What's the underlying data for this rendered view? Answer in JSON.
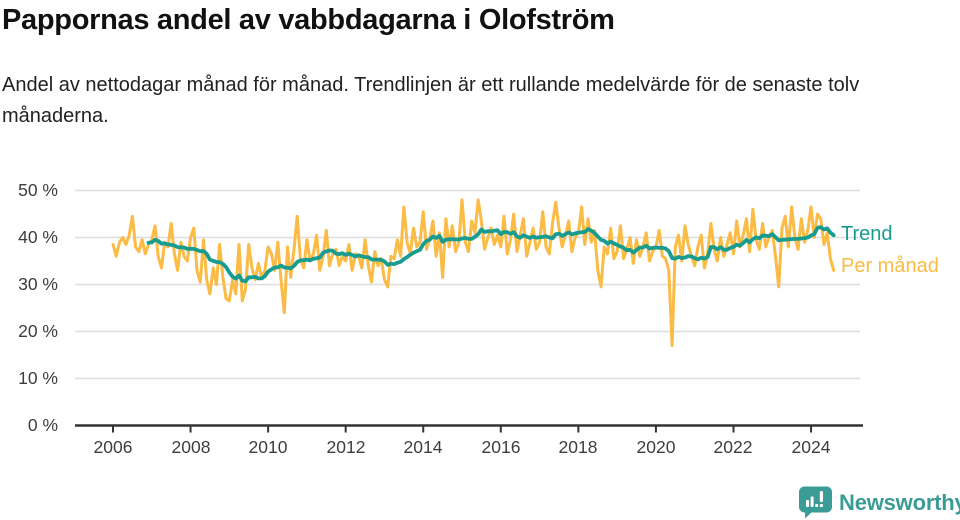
{
  "header": {
    "title": "Pappornas andel av vabbdagarna i Olofström",
    "subtitle": "Andel av nettodagar månad för månad. Trendlinjen är ett rullande medelvärde för de senaste tolv månaderna."
  },
  "branding": {
    "logo_text": "Newsworthy",
    "logo_color": "#3b9c95",
    "logo_icon": "speech-bubble-bar-chart"
  },
  "chart_data": {
    "type": "line",
    "title": "Pappornas andel av vabbdagarna i Olofström",
    "xlabel": "",
    "ylabel": "",
    "unit": "%",
    "grid": "horizontal",
    "legend_position": "right-of-plot",
    "x_axis": {
      "start": "2006-01",
      "end": "2024-08",
      "interval": "monthly",
      "tick_years": [
        2006,
        2008,
        2010,
        2012,
        2014,
        2016,
        2018,
        2020,
        2022,
        2024
      ]
    },
    "y_axis": {
      "ylim": [
        0,
        50
      ],
      "tick_values": [
        0,
        10,
        20,
        30,
        40,
        50
      ],
      "tick_labels": [
        "0 %",
        "10 %",
        "20 %",
        "30 %",
        "40 %",
        "50 %"
      ]
    },
    "series": [
      {
        "name": "Trend",
        "color": "#189c8f",
        "derived": "rullande medelvärde för de senaste tolv månaderna (beräknas från serien Per månad)",
        "starts": "2006-12"
      },
      {
        "name": "Per månad",
        "color": "#fbbb45",
        "starts": "2006-01",
        "values": [
          38.5,
          36.0,
          39.0,
          40.0,
          38.5,
          40.5,
          44.5,
          38.0,
          37.0,
          39.5,
          36.5,
          38.5,
          39.5,
          42.5,
          36.0,
          33.5,
          39.0,
          38.0,
          43.0,
          36.5,
          33.0,
          39.0,
          36.0,
          35.0,
          40.0,
          42.0,
          33.0,
          30.5,
          39.5,
          31.0,
          28.0,
          33.5,
          30.0,
          38.5,
          31.5,
          27.0,
          26.5,
          31.0,
          28.0,
          38.5,
          26.5,
          29.0,
          38.5,
          33.5,
          31.0,
          34.5,
          31.5,
          33.0,
          38.0,
          36.5,
          33.0,
          39.0,
          31.0,
          24.0,
          38.0,
          31.5,
          37.5,
          44.5,
          35.5,
          33.5,
          39.5,
          35.0,
          36.5,
          40.5,
          33.0,
          36.0,
          41.5,
          34.0,
          36.5,
          37.5,
          34.0,
          36.0,
          35.0,
          38.5,
          33.0,
          36.5,
          36.0,
          33.5,
          39.5,
          34.0,
          30.5,
          37.0,
          34.0,
          35.5,
          31.0,
          29.5,
          36.0,
          35.5,
          39.5,
          36.0,
          46.5,
          39.0,
          36.5,
          42.0,
          38.0,
          39.0,
          45.5,
          37.5,
          39.5,
          43.5,
          36.0,
          41.0,
          31.5,
          44.0,
          38.0,
          42.5,
          37.0,
          39.0,
          48.0,
          39.0,
          37.0,
          43.5,
          41.0,
          48.0,
          43.5,
          37.5,
          40.0,
          42.0,
          38.5,
          40.5,
          38.0,
          44.5,
          36.5,
          39.5,
          45.0,
          37.0,
          40.5,
          44.0,
          36.0,
          39.0,
          42.0,
          37.5,
          39.0,
          45.5,
          38.0,
          36.5,
          43.0,
          47.5,
          42.0,
          38.0,
          40.5,
          43.5,
          37.0,
          40.0,
          41.0,
          46.5,
          38.5,
          44.0,
          39.0,
          41.5,
          33.0,
          29.5,
          38.0,
          36.5,
          42.0,
          35.5,
          37.0,
          42.5,
          35.5,
          37.5,
          40.0,
          34.5,
          39.5,
          36.0,
          38.0,
          41.0,
          35.0,
          37.0,
          38.0,
          41.5,
          36.0,
          35.5,
          33.0,
          17.0,
          38.0,
          40.5,
          35.0,
          42.5,
          38.5,
          36.0,
          34.0,
          38.0,
          40.5,
          33.5,
          36.5,
          43.0,
          37.5,
          35.0,
          40.0,
          36.0,
          38.5,
          41.0,
          36.5,
          43.5,
          38.0,
          40.5,
          44.0,
          37.0,
          46.0,
          39.5,
          37.5,
          43.0,
          38.0,
          40.0,
          41.5,
          36.0,
          29.5,
          42.0,
          44.5,
          38.0,
          46.5,
          40.0,
          37.5,
          44.0,
          39.0,
          41.5,
          46.5,
          40.0,
          45.0,
          44.0,
          38.5,
          41.0,
          35.5,
          33.0
        ]
      }
    ]
  }
}
